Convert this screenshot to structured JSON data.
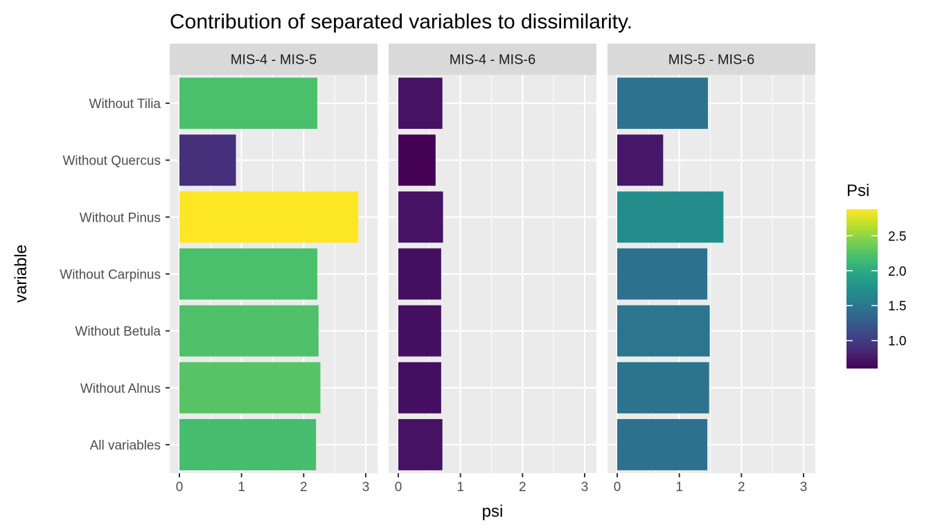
{
  "chart_data": {
    "type": "bar",
    "orientation": "horizontal",
    "title": "Contribution of separated variables to dissimilarity.",
    "xlabel": "psi",
    "ylabel": "variable",
    "xlim": [
      0,
      3
    ],
    "x_ticks": [
      "0",
      "1",
      "2",
      "3"
    ],
    "categories": [
      "All variables",
      "Without Alnus",
      "Without Betula",
      "Without Carpinus",
      "Without Pinus",
      "Without Quercus",
      "Without Tilia"
    ],
    "facets": [
      {
        "name": "MIS-4 - MIS-5",
        "values": [
          2.2,
          2.27,
          2.24,
          2.22,
          2.88,
          0.91,
          2.22
        ]
      },
      {
        "name": "MIS-4 - MIS-6",
        "values": [
          0.71,
          0.69,
          0.69,
          0.69,
          0.72,
          0.6,
          0.71
        ]
      },
      {
        "name": "MIS-5 - MIS-6",
        "values": [
          1.45,
          1.48,
          1.49,
          1.45,
          1.71,
          0.74,
          1.46
        ]
      }
    ],
    "legend": {
      "title": "Psi",
      "position": "right",
      "range": [
        0.6,
        2.88
      ],
      "ticks": [
        "1.0",
        "1.5",
        "2.0",
        "2.5"
      ],
      "tick_values": [
        1.0,
        1.5,
        2.0,
        2.5
      ]
    },
    "colormap": "viridis",
    "grid": true
  }
}
